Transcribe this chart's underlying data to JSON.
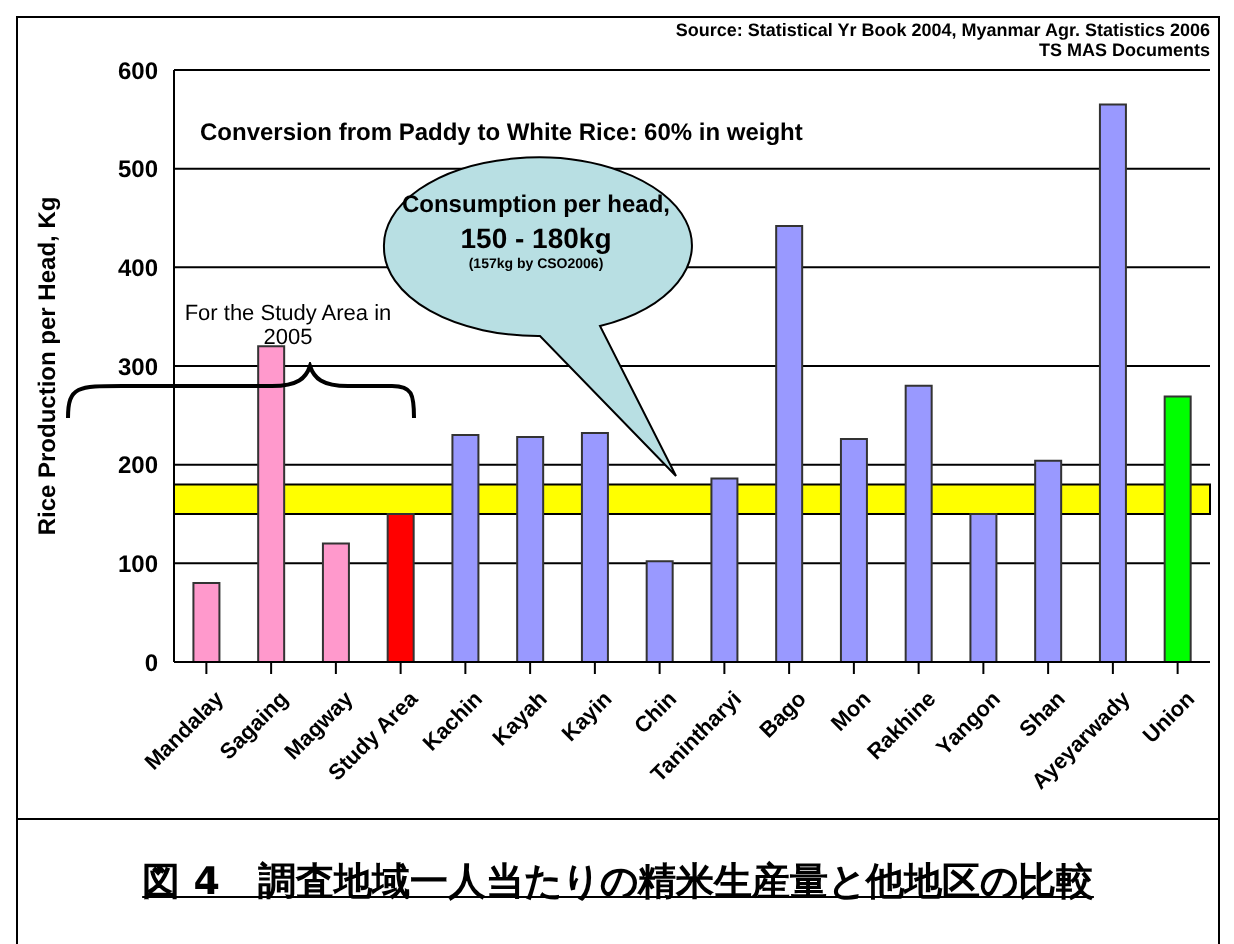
{
  "chart_data": {
    "type": "bar",
    "title": "図 4　調査地域一人当たりの精米生産量と他地区の比較",
    "ylabel": "Rice Production per Head, Kg",
    "categories": [
      "Mandalay",
      "Sagaing",
      "Magway",
      "Study Area",
      "Kachin",
      "Kayah",
      "Kayin",
      "Chin",
      "Tanintharyi",
      "Bago",
      "Mon",
      "Rakhine",
      "Yangon",
      "Shan",
      "Ayeyarwady",
      "Union"
    ],
    "values": [
      80,
      320,
      120,
      150,
      230,
      228,
      232,
      102,
      186,
      442,
      226,
      280,
      150,
      204,
      565,
      269
    ],
    "colors": [
      "#ff99cc",
      "#ff99cc",
      "#ff99cc",
      "#ff0000",
      "#9999ff",
      "#9999ff",
      "#9999ff",
      "#9999ff",
      "#9999ff",
      "#9999ff",
      "#9999ff",
      "#9999ff",
      "#9999ff",
      "#9999ff",
      "#9999ff",
      "#00ff00"
    ],
    "ylim": [
      0,
      600
    ],
    "yticks": [
      0,
      100,
      200,
      300,
      400,
      500,
      600
    ],
    "grid": "y",
    "bands": [
      {
        "axis": "y",
        "from": 150,
        "to": 180,
        "color": "#ffff00"
      }
    ],
    "annotations": [
      "Conversion from Paddy to White Rice: 60% in weight",
      "Consumption per head,",
      "150 - 180kg",
      "(157kg by CSO2006)",
      "For the Study Area in 2005",
      "Source: Statistical Yr Book 2004, Myanmar Agr. Statistics 2006",
      "TS MAS Documents"
    ]
  }
}
